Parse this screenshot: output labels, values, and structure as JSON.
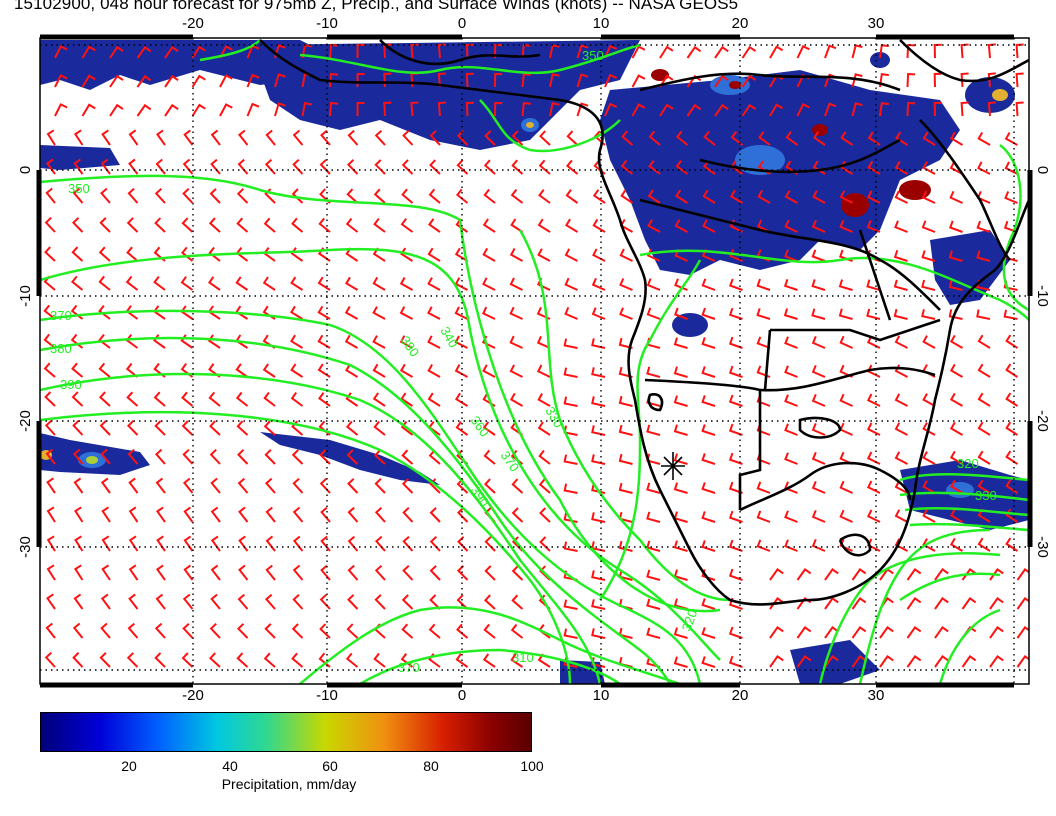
{
  "title": "15102900, 048 hour forecast for 975mb Z, Precip., and Surface Winds (knots) -- NASA GEOS5",
  "map": {
    "lon_ticks": [
      "-20",
      "-10",
      "0",
      "10",
      "20",
      "30"
    ],
    "lat_ticks": [
      "0",
      "-10",
      "-20",
      "-30"
    ],
    "contour_labels": [
      "350",
      "370",
      "380",
      "390",
      "340",
      "360",
      "330",
      "320",
      "310"
    ],
    "colors": {
      "contour": "#22ee22",
      "barb": "#ff1111",
      "coast": "#000000",
      "precip_low": "#1a2a9c",
      "precip_mid": "#2f6fd8",
      "precip_high": "#9a0000"
    }
  },
  "colorbar": {
    "title": "Precipitation, mm/day",
    "labels": [
      "20",
      "40",
      "60",
      "80",
      "100"
    ],
    "range": [
      0,
      100
    ]
  }
}
